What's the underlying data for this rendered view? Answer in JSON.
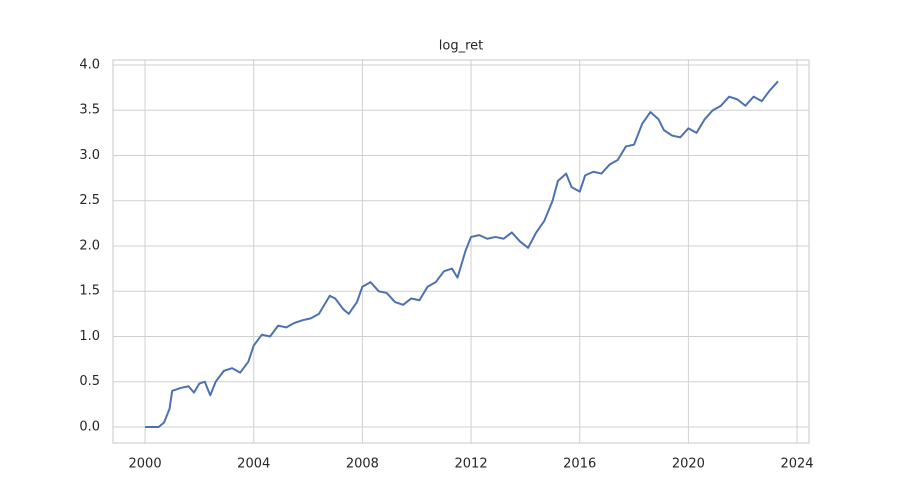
{
  "chart_data": {
    "type": "line",
    "title": "log_ret",
    "x": [
      2000.0,
      2000.5,
      2000.7,
      2000.9,
      2001.0,
      2001.3,
      2001.6,
      2001.8,
      2002.0,
      2002.2,
      2002.4,
      2002.6,
      2002.9,
      2003.2,
      2003.5,
      2003.8,
      2004.0,
      2004.3,
      2004.6,
      2004.9,
      2005.2,
      2005.5,
      2005.8,
      2006.1,
      2006.4,
      2006.8,
      2007.0,
      2007.3,
      2007.5,
      2007.8,
      2008.0,
      2008.3,
      2008.6,
      2008.9,
      2009.2,
      2009.5,
      2009.8,
      2010.1,
      2010.4,
      2010.7,
      2011.0,
      2011.3,
      2011.5,
      2011.8,
      2012.0,
      2012.3,
      2012.6,
      2012.9,
      2013.2,
      2013.5,
      2013.8,
      2014.1,
      2014.4,
      2014.7,
      2015.0,
      2015.2,
      2015.5,
      2015.7,
      2016.0,
      2016.2,
      2016.5,
      2016.8,
      2017.1,
      2017.4,
      2017.7,
      2018.0,
      2018.3,
      2018.6,
      2018.9,
      2019.1,
      2019.4,
      2019.7,
      2020.0,
      2020.3,
      2020.6,
      2020.9,
      2021.2,
      2021.5,
      2021.8,
      2022.1,
      2022.4,
      2022.7,
      2023.0,
      2023.3
    ],
    "series": [
      {
        "color": "#4c72b0",
        "values": [
          0,
          0,
          0.05,
          0.2,
          0.4,
          0.43,
          0.45,
          0.38,
          0.48,
          0.5,
          0.35,
          0.5,
          0.62,
          0.65,
          0.6,
          0.72,
          0.9,
          1.02,
          1.0,
          1.12,
          1.1,
          1.15,
          1.18,
          1.2,
          1.25,
          1.45,
          1.42,
          1.3,
          1.25,
          1.38,
          1.55,
          1.6,
          1.5,
          1.48,
          1.38,
          1.35,
          1.42,
          1.4,
          1.55,
          1.6,
          1.72,
          1.75,
          1.65,
          1.95,
          2.1,
          2.12,
          2.08,
          2.1,
          2.08,
          2.15,
          2.05,
          1.98,
          2.15,
          2.28,
          2.5,
          2.72,
          2.8,
          2.65,
          2.6,
          2.78,
          2.82,
          2.8,
          2.9,
          2.95,
          3.1,
          3.12,
          3.35,
          3.48,
          3.4,
          3.28,
          3.22,
          3.2,
          3.3,
          3.25,
          3.4,
          3.5,
          3.55,
          3.65,
          3.62,
          3.55,
          3.65,
          3.6,
          3.72,
          3.82
        ]
      }
    ],
    "xlim": [
      1998.82,
      2024.44
    ],
    "ylim": [
      -0.177,
      4.055
    ],
    "xticks": [
      2000,
      2004,
      2008,
      2012,
      2016,
      2020,
      2024
    ],
    "yticks": [
      {
        "value": 0,
        "label": "0.0"
      },
      {
        "value": 0.5,
        "label": "0.5"
      },
      {
        "value": 1,
        "label": "1.0"
      },
      {
        "value": 1.5,
        "label": "1.5"
      },
      {
        "value": 2,
        "label": "2.0"
      },
      {
        "value": 2.5,
        "label": "2.5"
      },
      {
        "value": 3,
        "label": "3.0"
      },
      {
        "value": 3.5,
        "label": "3.5"
      },
      {
        "value": 4,
        "label": "4.0"
      }
    ],
    "grid": true
  }
}
